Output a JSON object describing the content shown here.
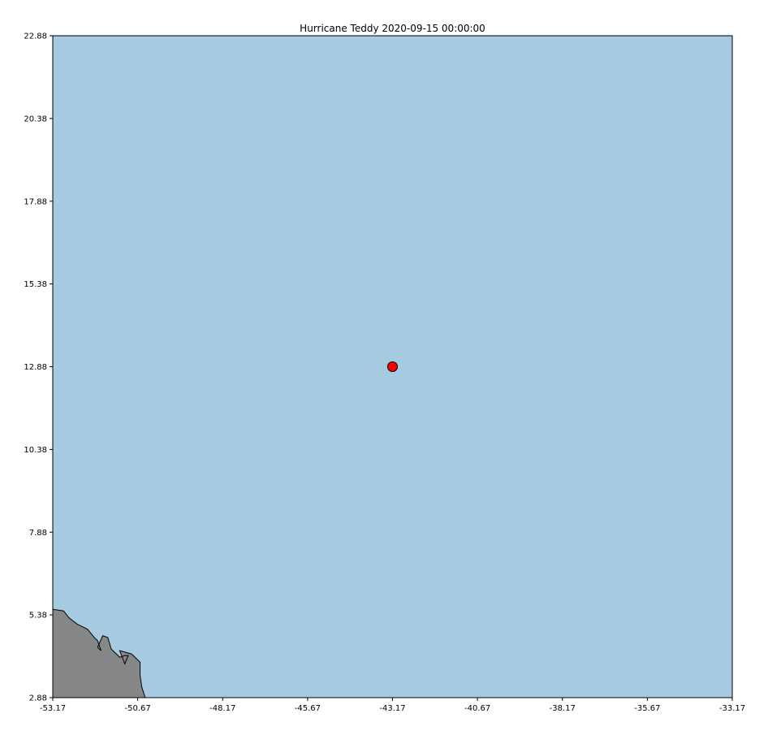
{
  "title": "Hurricane Teddy 2020-09-15 00:00:00",
  "colors": {
    "ocean": "#a6cadf",
    "land": "#858789",
    "marker": "#ff0000",
    "edge": "#000000"
  },
  "chart_data": {
    "type": "scatter",
    "title": "Hurricane Teddy 2020-09-15 00:00:00",
    "xlabel": "",
    "ylabel": "",
    "xlim": [
      -53.17,
      -33.17
    ],
    "ylim": [
      2.88,
      22.88
    ],
    "x_ticks": [
      "-53.17",
      "-50.67",
      "-48.17",
      "-45.67",
      "-43.17",
      "-40.67",
      "-38.17",
      "-35.67",
      "-33.17"
    ],
    "y_ticks": [
      "22.88",
      "20.38",
      "17.88",
      "15.38",
      "12.88",
      "10.38",
      "7.88",
      "5.38",
      "2.88"
    ],
    "grid": false,
    "points": [
      {
        "lon": -43.17,
        "lat": 12.88,
        "color": "red"
      }
    ],
    "land": {
      "coastline": [
        [
          -53.17,
          5.55
        ],
        [
          -52.85,
          5.5
        ],
        [
          -52.7,
          5.3
        ],
        [
          -52.45,
          5.1
        ],
        [
          -52.15,
          4.95
        ],
        [
          -51.95,
          4.7
        ],
        [
          -51.85,
          4.6
        ],
        [
          -51.75,
          4.3
        ],
        [
          -51.85,
          4.4
        ],
        [
          -51.7,
          4.75
        ],
        [
          -51.55,
          4.7
        ],
        [
          -51.45,
          4.35
        ],
        [
          -51.2,
          4.1
        ],
        [
          -51.05,
          4.15
        ],
        [
          -50.95,
          4.15
        ],
        [
          -51.05,
          3.9
        ],
        [
          -51.2,
          4.3
        ],
        [
          -50.85,
          4.2
        ],
        [
          -50.6,
          3.95
        ],
        [
          -50.6,
          3.55
        ],
        [
          -50.55,
          3.2
        ],
        [
          -50.45,
          2.88
        ]
      ]
    }
  }
}
